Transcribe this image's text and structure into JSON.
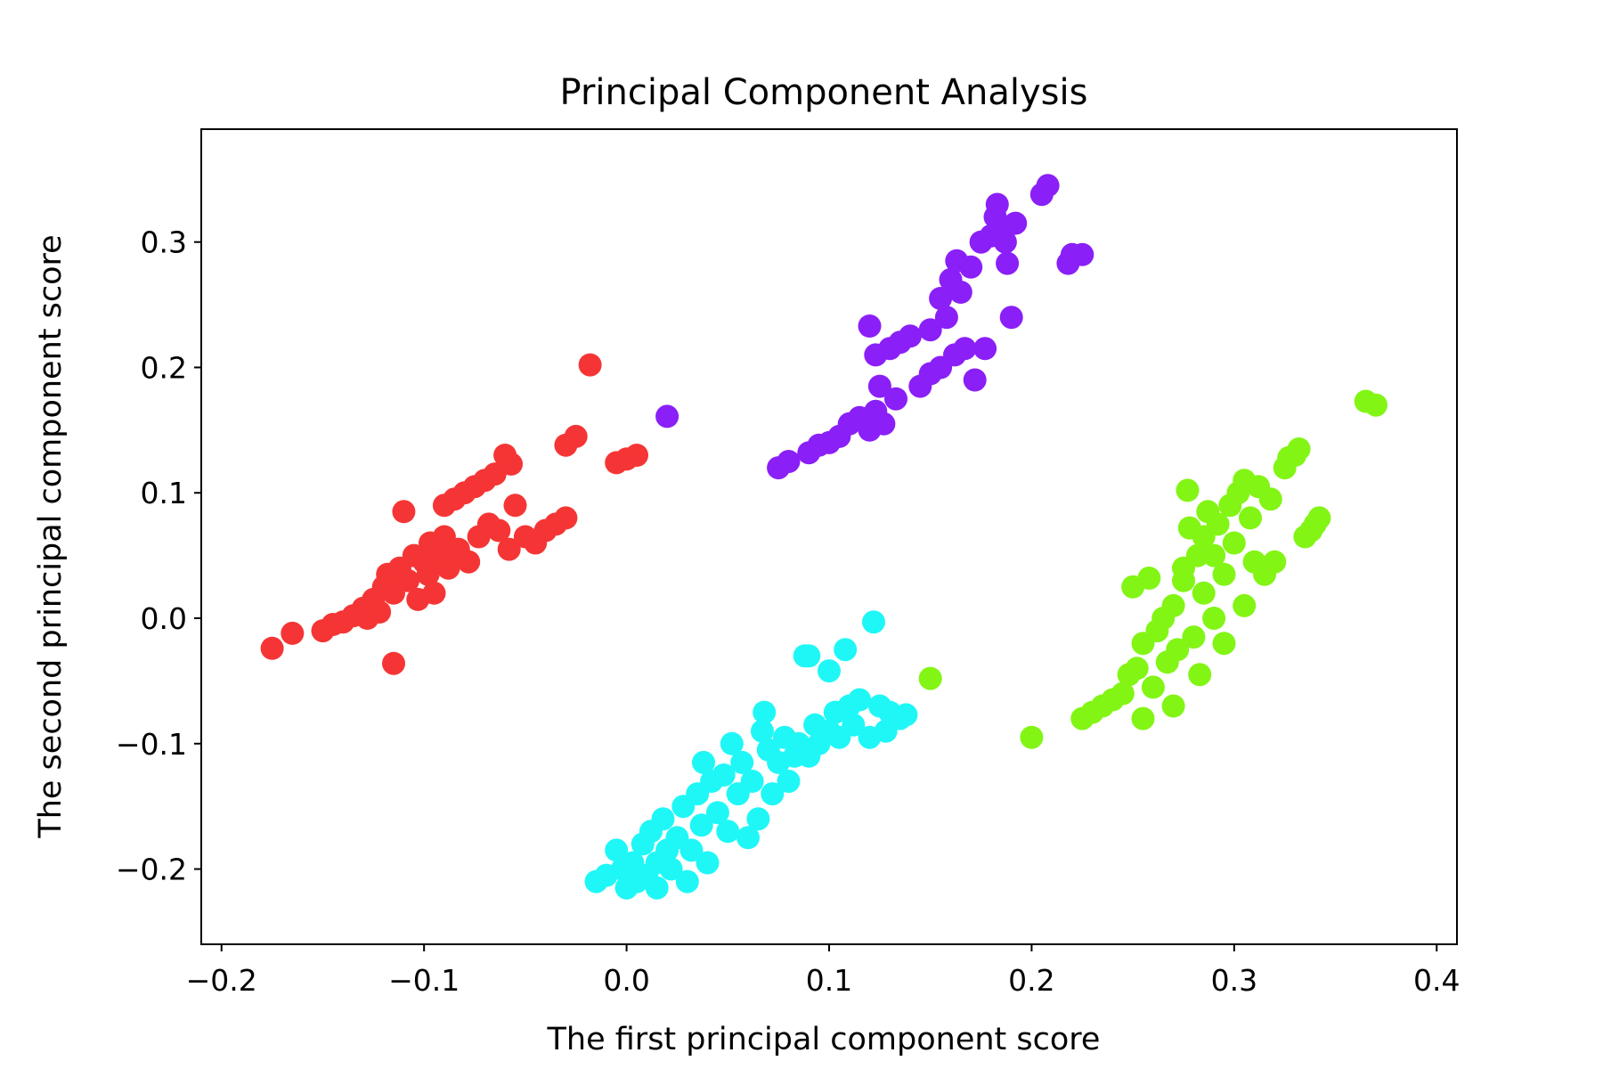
{
  "chart_data": {
    "type": "scatter",
    "title": "Principal Component Analysis",
    "xlabel": "The first principal component score",
    "ylabel": "The second principal component score",
    "xlim": [
      -0.21,
      0.41
    ],
    "ylim": [
      -0.26,
      0.39
    ],
    "xticks": [
      -0.2,
      -0.1,
      0.0,
      0.1,
      0.2,
      0.3,
      0.4
    ],
    "xtick_labels": [
      "−0.2",
      "−0.1",
      "0.0",
      "0.1",
      "0.2",
      "0.3",
      "0.4"
    ],
    "yticks": [
      -0.2,
      -0.1,
      0.0,
      0.1,
      0.2,
      0.3
    ],
    "ytick_labels": [
      "−0.2",
      "−0.1",
      "0.0",
      "0.1",
      "0.2",
      "0.3"
    ],
    "grid": false,
    "series": [
      {
        "color": "#f53535",
        "points": [
          [
            -0.175,
            -0.024
          ],
          [
            -0.165,
            -0.012
          ],
          [
            -0.15,
            -0.01
          ],
          [
            -0.145,
            -0.005
          ],
          [
            -0.14,
            -0.003
          ],
          [
            -0.135,
            0.002
          ],
          [
            -0.13,
            0.008
          ],
          [
            -0.128,
            0.0
          ],
          [
            -0.125,
            0.015
          ],
          [
            -0.122,
            0.005
          ],
          [
            -0.12,
            0.025
          ],
          [
            -0.118,
            0.035
          ],
          [
            -0.115,
            0.02
          ],
          [
            -0.115,
            -0.036
          ],
          [
            -0.112,
            0.04
          ],
          [
            -0.11,
            0.085
          ],
          [
            -0.108,
            0.03
          ],
          [
            -0.105,
            0.05
          ],
          [
            -0.103,
            0.015
          ],
          [
            -0.1,
            0.045
          ],
          [
            -0.098,
            0.035
          ],
          [
            -0.097,
            0.06
          ],
          [
            -0.095,
            0.02
          ],
          [
            -0.093,
            0.05
          ],
          [
            -0.09,
            0.065
          ],
          [
            -0.09,
            0.09
          ],
          [
            -0.088,
            0.04
          ],
          [
            -0.085,
            0.095
          ],
          [
            -0.083,
            0.055
          ],
          [
            -0.08,
            0.1
          ],
          [
            -0.078,
            0.045
          ],
          [
            -0.075,
            0.105
          ],
          [
            -0.073,
            0.065
          ],
          [
            -0.07,
            0.11
          ],
          [
            -0.068,
            0.075
          ],
          [
            -0.065,
            0.115
          ],
          [
            -0.063,
            0.07
          ],
          [
            -0.06,
            0.13
          ],
          [
            -0.058,
            0.055
          ],
          [
            -0.057,
            0.123
          ],
          [
            -0.055,
            0.09
          ],
          [
            -0.05,
            0.065
          ],
          [
            -0.045,
            0.06
          ],
          [
            -0.04,
            0.07
          ],
          [
            -0.035,
            0.075
          ],
          [
            -0.03,
            0.08
          ],
          [
            -0.03,
            0.138
          ],
          [
            -0.025,
            0.145
          ],
          [
            -0.018,
            0.202
          ],
          [
            -0.005,
            0.124
          ],
          [
            0.0,
            0.127
          ],
          [
            0.005,
            0.13
          ]
        ]
      },
      {
        "color": "#8a1ff7",
        "points": [
          [
            0.02,
            0.161
          ],
          [
            0.075,
            0.12
          ],
          [
            0.08,
            0.125
          ],
          [
            0.09,
            0.132
          ],
          [
            0.095,
            0.138
          ],
          [
            0.1,
            0.14
          ],
          [
            0.105,
            0.145
          ],
          [
            0.11,
            0.155
          ],
          [
            0.115,
            0.16
          ],
          [
            0.12,
            0.15
          ],
          [
            0.12,
            0.233
          ],
          [
            0.123,
            0.165
          ],
          [
            0.123,
            0.21
          ],
          [
            0.125,
            0.185
          ],
          [
            0.127,
            0.155
          ],
          [
            0.13,
            0.215
          ],
          [
            0.133,
            0.175
          ],
          [
            0.135,
            0.22
          ],
          [
            0.14,
            0.225
          ],
          [
            0.145,
            0.185
          ],
          [
            0.15,
            0.23
          ],
          [
            0.15,
            0.195
          ],
          [
            0.155,
            0.255
          ],
          [
            0.155,
            0.2
          ],
          [
            0.158,
            0.24
          ],
          [
            0.16,
            0.27
          ],
          [
            0.162,
            0.21
          ],
          [
            0.163,
            0.285
          ],
          [
            0.165,
            0.26
          ],
          [
            0.167,
            0.215
          ],
          [
            0.17,
            0.28
          ],
          [
            0.172,
            0.19
          ],
          [
            0.175,
            0.3
          ],
          [
            0.177,
            0.215
          ],
          [
            0.18,
            0.305
          ],
          [
            0.182,
            0.32
          ],
          [
            0.183,
            0.33
          ],
          [
            0.185,
            0.31
          ],
          [
            0.187,
            0.3
          ],
          [
            0.188,
            0.283
          ],
          [
            0.19,
            0.24
          ],
          [
            0.192,
            0.315
          ],
          [
            0.205,
            0.338
          ],
          [
            0.208,
            0.345
          ],
          [
            0.218,
            0.283
          ],
          [
            0.22,
            0.29
          ],
          [
            0.225,
            0.29
          ]
        ]
      },
      {
        "color": "#1ff7f7",
        "points": [
          [
            -0.015,
            -0.21
          ],
          [
            -0.01,
            -0.205
          ],
          [
            -0.005,
            -0.185
          ],
          [
            -0.002,
            -0.2
          ],
          [
            0.0,
            -0.215
          ],
          [
            0.003,
            -0.195
          ],
          [
            0.005,
            -0.21
          ],
          [
            0.008,
            -0.18
          ],
          [
            0.01,
            -0.205
          ],
          [
            0.012,
            -0.17
          ],
          [
            0.015,
            -0.195
          ],
          [
            0.015,
            -0.215
          ],
          [
            0.018,
            -0.16
          ],
          [
            0.02,
            -0.185
          ],
          [
            0.022,
            -0.2
          ],
          [
            0.025,
            -0.175
          ],
          [
            0.028,
            -0.15
          ],
          [
            0.03,
            -0.21
          ],
          [
            0.032,
            -0.185
          ],
          [
            0.035,
            -0.14
          ],
          [
            0.037,
            -0.165
          ],
          [
            0.038,
            -0.115
          ],
          [
            0.04,
            -0.195
          ],
          [
            0.042,
            -0.13
          ],
          [
            0.045,
            -0.155
          ],
          [
            0.048,
            -0.125
          ],
          [
            0.05,
            -0.17
          ],
          [
            0.052,
            -0.1
          ],
          [
            0.055,
            -0.14
          ],
          [
            0.057,
            -0.115
          ],
          [
            0.06,
            -0.175
          ],
          [
            0.062,
            -0.13
          ],
          [
            0.065,
            -0.16
          ],
          [
            0.067,
            -0.09
          ],
          [
            0.068,
            -0.075
          ],
          [
            0.07,
            -0.105
          ],
          [
            0.072,
            -0.14
          ],
          [
            0.075,
            -0.115
          ],
          [
            0.078,
            -0.095
          ],
          [
            0.08,
            -0.13
          ],
          [
            0.083,
            -0.11
          ],
          [
            0.085,
            -0.1
          ],
          [
            0.088,
            -0.03
          ],
          [
            0.09,
            -0.03
          ],
          [
            0.09,
            -0.11
          ],
          [
            0.093,
            -0.085
          ],
          [
            0.095,
            -0.1
          ],
          [
            0.1,
            -0.042
          ],
          [
            0.1,
            -0.09
          ],
          [
            0.103,
            -0.075
          ],
          [
            0.105,
            -0.095
          ],
          [
            0.108,
            -0.025
          ],
          [
            0.11,
            -0.07
          ],
          [
            0.112,
            -0.085
          ],
          [
            0.115,
            -0.065
          ],
          [
            0.12,
            -0.095
          ],
          [
            0.122,
            -0.003
          ],
          [
            0.125,
            -0.07
          ],
          [
            0.128,
            -0.09
          ],
          [
            0.13,
            -0.075
          ],
          [
            0.135,
            -0.08
          ],
          [
            0.138,
            -0.077
          ]
        ]
      },
      {
        "color": "#82f515",
        "points": [
          [
            0.15,
            -0.048
          ],
          [
            0.2,
            -0.095
          ],
          [
            0.225,
            -0.08
          ],
          [
            0.23,
            -0.075
          ],
          [
            0.235,
            -0.07
          ],
          [
            0.24,
            -0.065
          ],
          [
            0.245,
            -0.06
          ],
          [
            0.248,
            -0.045
          ],
          [
            0.25,
            0.025
          ],
          [
            0.252,
            -0.04
          ],
          [
            0.255,
            -0.08
          ],
          [
            0.255,
            -0.02
          ],
          [
            0.258,
            0.032
          ],
          [
            0.26,
            -0.055
          ],
          [
            0.262,
            -0.01
          ],
          [
            0.265,
            0.0
          ],
          [
            0.267,
            -0.035
          ],
          [
            0.27,
            -0.07
          ],
          [
            0.27,
            0.01
          ],
          [
            0.272,
            -0.025
          ],
          [
            0.275,
            0.03
          ],
          [
            0.275,
            0.04
          ],
          [
            0.277,
            0.102
          ],
          [
            0.278,
            0.072
          ],
          [
            0.28,
            -0.015
          ],
          [
            0.282,
            0.05
          ],
          [
            0.283,
            -0.045
          ],
          [
            0.285,
            0.065
          ],
          [
            0.285,
            0.02
          ],
          [
            0.287,
            0.085
          ],
          [
            0.29,
            0.0
          ],
          [
            0.29,
            0.05
          ],
          [
            0.292,
            0.075
          ],
          [
            0.295,
            0.035
          ],
          [
            0.295,
            -0.02
          ],
          [
            0.298,
            0.09
          ],
          [
            0.3,
            0.06
          ],
          [
            0.302,
            0.1
          ],
          [
            0.305,
            0.01
          ],
          [
            0.305,
            0.11
          ],
          [
            0.308,
            0.08
          ],
          [
            0.31,
            0.045
          ],
          [
            0.312,
            0.105
          ],
          [
            0.315,
            0.035
          ],
          [
            0.318,
            0.095
          ],
          [
            0.32,
            0.045
          ],
          [
            0.325,
            0.12
          ],
          [
            0.327,
            0.128
          ],
          [
            0.33,
            0.13
          ],
          [
            0.332,
            0.135
          ],
          [
            0.335,
            0.065
          ],
          [
            0.338,
            0.07
          ],
          [
            0.34,
            0.075
          ],
          [
            0.342,
            0.08
          ],
          [
            0.365,
            0.173
          ],
          [
            0.37,
            0.17
          ]
        ]
      }
    ]
  }
}
